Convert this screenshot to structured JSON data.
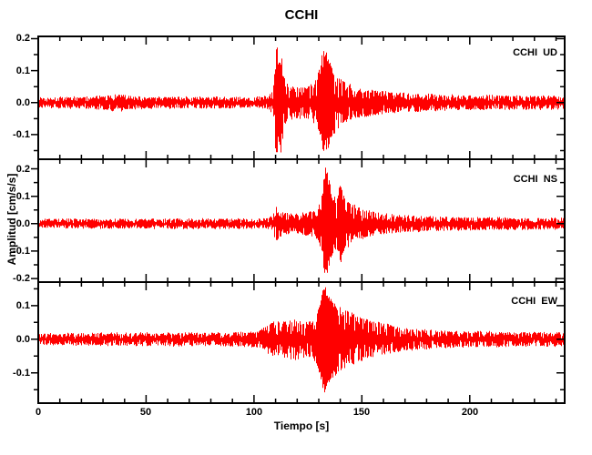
{
  "figure": {
    "background_color": "#ffffff",
    "axis_color": "#000000",
    "text_color": "#000000"
  },
  "chart_data": {
    "type": "line",
    "title": "CCHI",
    "xlabel": "Tiempo [s]",
    "ylabel": "Amplitud [cm/s/s]",
    "trace_color": "#ff0000",
    "grid": false,
    "x_range": [
      0,
      244
    ],
    "x_minor_tick_step": 10,
    "x_major_tick_step": 50,
    "y_minor_tick_step": 0.05,
    "y_major_tick_step": 0.1,
    "x_ticks": [
      {
        "value": 0,
        "label": "0"
      },
      {
        "value": 50,
        "label": "50"
      },
      {
        "value": 100,
        "label": "100"
      },
      {
        "value": 150,
        "label": "150"
      },
      {
        "value": 200,
        "label": "200"
      }
    ],
    "panels": [
      {
        "id": "ud",
        "label": "CCHI  UD",
        "ylim": [
          -0.177,
          0.207
        ],
        "y_ticks": [
          {
            "value": 0.2,
            "label": "0.2"
          },
          {
            "value": 0.1,
            "label": "0.1"
          },
          {
            "value": 0.0,
            "label": "0.0"
          },
          {
            "value": -0.1,
            "label": "-0.1"
          }
        ],
        "envelope": [
          [
            0,
            0.016
          ],
          [
            25,
            0.018
          ],
          [
            34,
            0.024
          ],
          [
            37,
            0.03
          ],
          [
            41,
            0.022
          ],
          [
            55,
            0.017
          ],
          [
            80,
            0.018
          ],
          [
            100,
            0.017
          ],
          [
            107,
            0.02
          ],
          [
            109,
            0.04
          ],
          [
            110.5,
            0.2
          ],
          [
            111.5,
            0.12
          ],
          [
            112.5,
            0.16
          ],
          [
            114,
            0.08
          ],
          [
            116,
            0.055
          ],
          [
            120,
            0.048
          ],
          [
            125,
            0.05
          ],
          [
            128,
            0.065
          ],
          [
            130,
            0.1
          ],
          [
            131.5,
            0.15
          ],
          [
            133,
            0.17
          ],
          [
            134.5,
            0.14
          ],
          [
            136,
            0.11
          ],
          [
            138,
            0.09
          ],
          [
            141,
            0.07
          ],
          [
            145,
            0.055
          ],
          [
            150,
            0.045
          ],
          [
            156,
            0.038
          ],
          [
            164,
            0.032
          ],
          [
            175,
            0.027
          ],
          [
            190,
            0.024
          ],
          [
            210,
            0.022
          ],
          [
            244,
            0.02
          ]
        ]
      },
      {
        "id": "ns",
        "label": "CCHI  NS",
        "ylim": [
          -0.213,
          0.235
        ],
        "y_ticks": [
          {
            "value": 0.2,
            "label": "0.2"
          },
          {
            "value": 0.1,
            "label": "0.1"
          },
          {
            "value": 0.0,
            "label": "0.0"
          },
          {
            "value": -0.1,
            "label": "-0.1"
          },
          {
            "value": -0.2,
            "label": "-0.2"
          }
        ],
        "envelope": [
          [
            0,
            0.016
          ],
          [
            40,
            0.017
          ],
          [
            80,
            0.018
          ],
          [
            100,
            0.017
          ],
          [
            106,
            0.02
          ],
          [
            108.5,
            0.03
          ],
          [
            110.5,
            0.065
          ],
          [
            112,
            0.05
          ],
          [
            114,
            0.04
          ],
          [
            118,
            0.034
          ],
          [
            123,
            0.04
          ],
          [
            127,
            0.046
          ],
          [
            129.5,
            0.055
          ],
          [
            131,
            0.09
          ],
          [
            132.5,
            0.17
          ],
          [
            133.5,
            0.235
          ],
          [
            134.5,
            0.19
          ],
          [
            135.5,
            0.13
          ],
          [
            137,
            0.1
          ],
          [
            138.5,
            0.09
          ],
          [
            140,
            0.15
          ],
          [
            141.5,
            0.11
          ],
          [
            143.5,
            0.085
          ],
          [
            146,
            0.07
          ],
          [
            150,
            0.055
          ],
          [
            155,
            0.045
          ],
          [
            161,
            0.038
          ],
          [
            170,
            0.031
          ],
          [
            182,
            0.026
          ],
          [
            200,
            0.023
          ],
          [
            244,
            0.02
          ]
        ]
      },
      {
        "id": "ew",
        "label": "CCHI  EW",
        "ylim": [
          -0.19,
          0.17
        ],
        "y_ticks": [
          {
            "value": 0.1,
            "label": "0.1"
          },
          {
            "value": 0.0,
            "label": "0.0"
          },
          {
            "value": -0.1,
            "label": "-0.1"
          }
        ],
        "envelope": [
          [
            0,
            0.016
          ],
          [
            30,
            0.018
          ],
          [
            60,
            0.02
          ],
          [
            85,
            0.019
          ],
          [
            100,
            0.022
          ],
          [
            104,
            0.03
          ],
          [
            107,
            0.045
          ],
          [
            110,
            0.055
          ],
          [
            113,
            0.05
          ],
          [
            116,
            0.056
          ],
          [
            119,
            0.06
          ],
          [
            122,
            0.055
          ],
          [
            125,
            0.05
          ],
          [
            127,
            0.056
          ],
          [
            129,
            0.07
          ],
          [
            131,
            0.12
          ],
          [
            132.5,
            0.17
          ],
          [
            134,
            0.14
          ],
          [
            135.5,
            0.12
          ],
          [
            137,
            0.11
          ],
          [
            139,
            0.1
          ],
          [
            141,
            0.09
          ],
          [
            144,
            0.085
          ],
          [
            147,
            0.075
          ],
          [
            150,
            0.065
          ],
          [
            154,
            0.056
          ],
          [
            158,
            0.05
          ],
          [
            163,
            0.042
          ],
          [
            168,
            0.036
          ],
          [
            175,
            0.03
          ],
          [
            185,
            0.026
          ],
          [
            200,
            0.023
          ],
          [
            220,
            0.021
          ],
          [
            244,
            0.02
          ]
        ]
      }
    ]
  }
}
